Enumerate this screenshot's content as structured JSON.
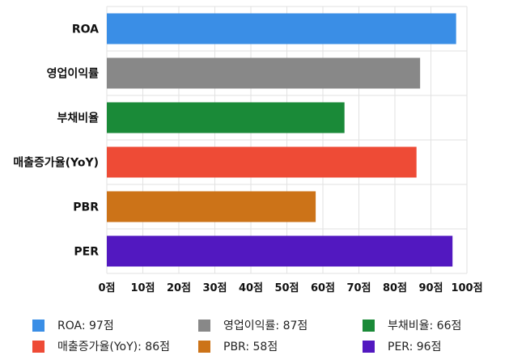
{
  "chart_data": {
    "type": "bar",
    "orientation": "horizontal",
    "categories": [
      "ROA",
      "영업이익률",
      "부채비율",
      "매출증가율(YoY)",
      "PBR",
      "PER"
    ],
    "values": [
      97,
      87,
      66,
      86,
      58,
      96
    ],
    "colors": [
      "#3a8ee6",
      "#888888",
      "#1a8a38",
      "#ee4b36",
      "#cc7318",
      "#5218c0"
    ],
    "xlim": [
      0,
      100
    ],
    "x_ticks": [
      0,
      10,
      20,
      30,
      40,
      50,
      60,
      70,
      80,
      90,
      100
    ],
    "tick_suffix": "점",
    "grid": true,
    "legend_position": "bottom",
    "legend": [
      {
        "label": "ROA: 97점",
        "color": "#3a8ee6"
      },
      {
        "label": "영업이익률: 87점",
        "color": "#888888"
      },
      {
        "label": "부채비율: 66점",
        "color": "#1a8a38"
      },
      {
        "label": "매출증가율(YoY): 86점",
        "color": "#ee4b36"
      },
      {
        "label": "PBR: 58점",
        "color": "#cc7318"
      },
      {
        "label": "PER: 96점",
        "color": "#5218c0"
      }
    ]
  }
}
